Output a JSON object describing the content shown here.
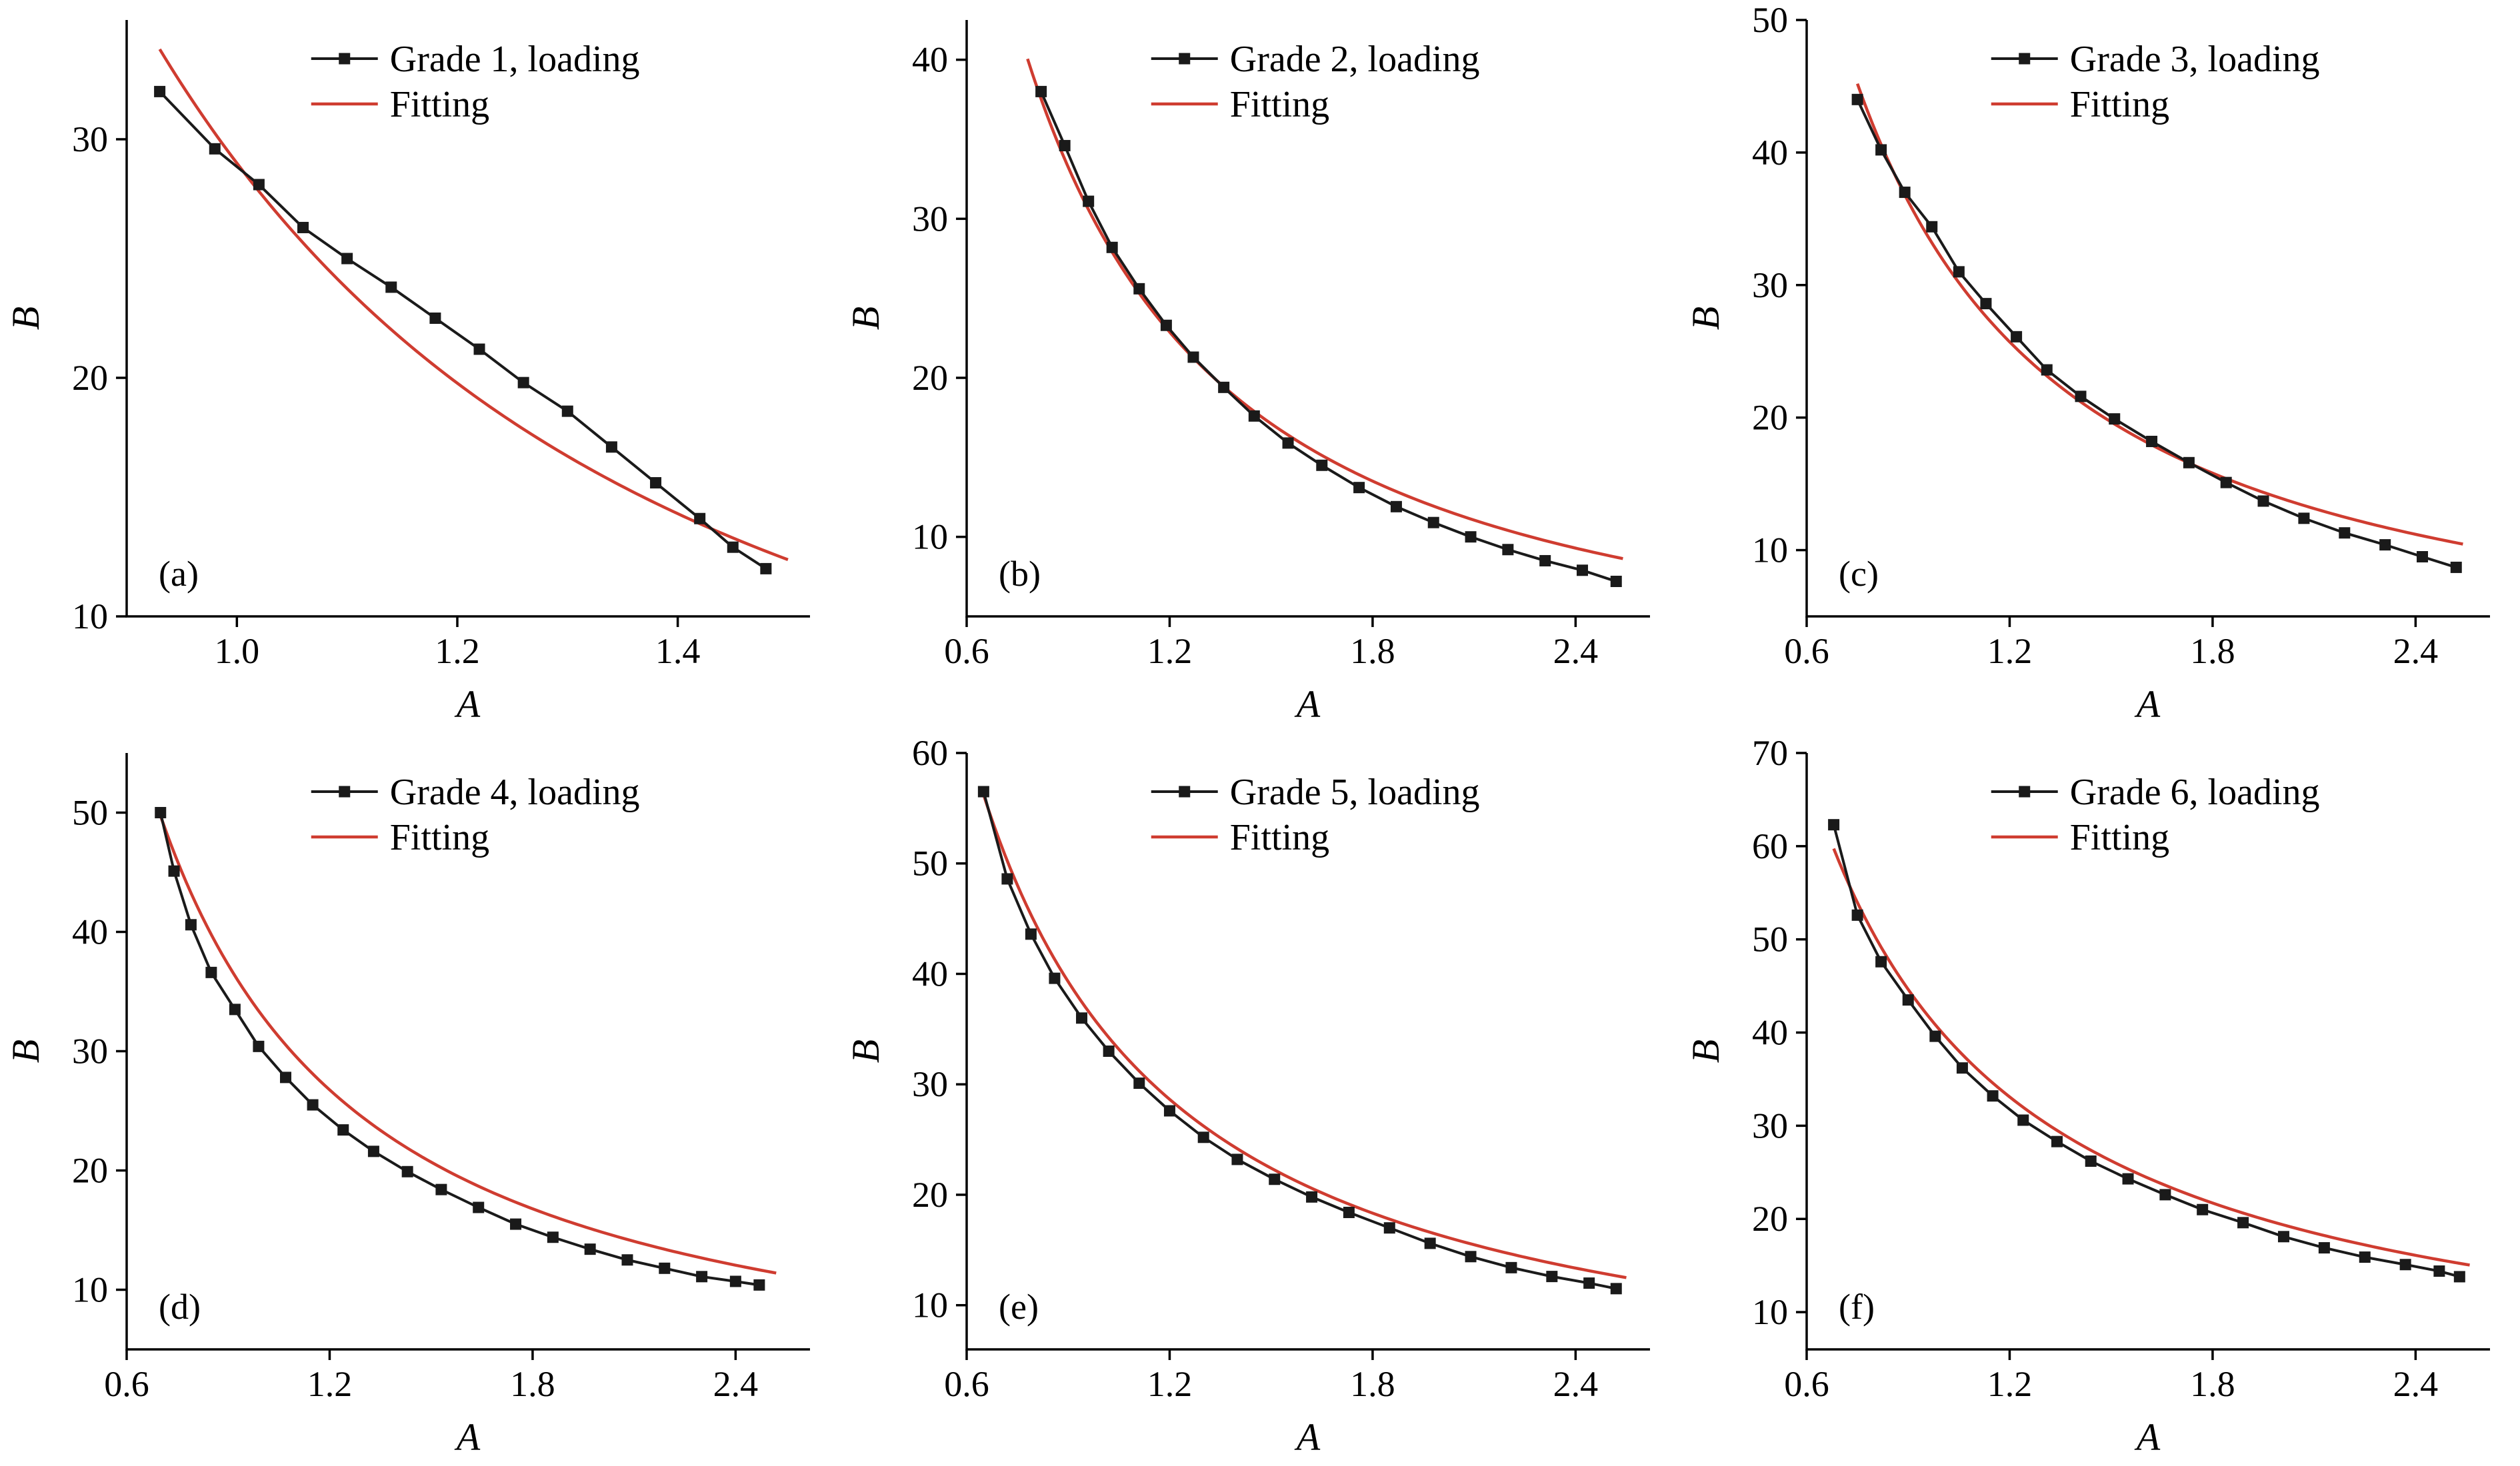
{
  "figure": {
    "background": "#ffffff"
  },
  "style": {
    "data_color": "#1a1a1a",
    "fit_color": "#cf3c30",
    "axis_color": "#000000"
  },
  "chart_data": [
    {
      "id": "a",
      "panel_label": "(a)",
      "type": "line",
      "title": "",
      "xlabel": "A",
      "ylabel": "B",
      "xlim": [
        0.9,
        1.52
      ],
      "ylim": [
        10,
        35
      ],
      "xticks": [
        1.0,
        1.2,
        1.4
      ],
      "xtick_labels": [
        "1.0",
        "1.2",
        "1.4"
      ],
      "yticks": [
        10,
        20,
        30
      ],
      "ytick_labels": [
        "10",
        "20",
        "30"
      ],
      "legend": [
        {
          "label": "Grade 1, loading",
          "style": "line+marker",
          "color": "#1a1a1a"
        },
        {
          "label": "Fitting",
          "style": "line",
          "color": "#cf3c30"
        }
      ],
      "series": [
        {
          "name": "Grade 1, loading",
          "x": [
            0.93,
            0.98,
            1.02,
            1.06,
            1.1,
            1.14,
            1.18,
            1.22,
            1.26,
            1.3,
            1.34,
            1.38,
            1.42,
            1.45,
            1.48
          ],
          "y": [
            32.0,
            29.6,
            28.1,
            26.3,
            25.0,
            23.8,
            22.5,
            21.2,
            19.8,
            18.6,
            17.1,
            15.6,
            14.1,
            12.9,
            12.0
          ]
        }
      ],
      "fit": {
        "name": "Fitting",
        "model": "power",
        "a": 29,
        "b": -2.1,
        "x_range": [
          0.93,
          1.5
        ]
      }
    },
    {
      "id": "b",
      "panel_label": "(b)",
      "type": "line",
      "title": "",
      "xlabel": "A",
      "ylabel": "B",
      "xlim": [
        0.6,
        2.62
      ],
      "ylim": [
        5,
        42.5
      ],
      "xticks": [
        0.6,
        1.2,
        1.8,
        2.4
      ],
      "xtick_labels": [
        "0.6",
        "1.2",
        "1.8",
        "2.4"
      ],
      "yticks": [
        10,
        20,
        30,
        40
      ],
      "ytick_labels": [
        "10",
        "20",
        "30",
        "40"
      ],
      "legend": [
        {
          "label": "Grade 2, loading",
          "style": "line+marker",
          "color": "#1a1a1a"
        },
        {
          "label": "Fitting",
          "style": "line",
          "color": "#cf3c30"
        }
      ],
      "series": [
        {
          "name": "Grade 2, loading",
          "x": [
            0.82,
            0.89,
            0.96,
            1.03,
            1.11,
            1.19,
            1.27,
            1.36,
            1.45,
            1.55,
            1.65,
            1.76,
            1.87,
            1.98,
            2.09,
            2.2,
            2.31,
            2.42,
            2.52
          ],
          "y": [
            38.0,
            34.6,
            31.1,
            28.2,
            25.6,
            23.3,
            21.3,
            19.4,
            17.6,
            15.9,
            14.5,
            13.1,
            11.9,
            10.9,
            10.0,
            9.2,
            8.5,
            7.9,
            7.2
          ]
        }
      ],
      "fit": {
        "name": "Fitting",
        "model": "power",
        "a": 29,
        "b": -1.3,
        "x_range": [
          0.78,
          2.54
        ]
      }
    },
    {
      "id": "c",
      "panel_label": "(c)",
      "type": "line",
      "title": "",
      "xlabel": "A",
      "ylabel": "B",
      "xlim": [
        0.6,
        2.62
      ],
      "ylim": [
        5,
        50
      ],
      "xticks": [
        0.6,
        1.2,
        1.8,
        2.4
      ],
      "xtick_labels": [
        "0.6",
        "1.2",
        "1.8",
        "2.4"
      ],
      "yticks": [
        10,
        20,
        30,
        40,
        50
      ],
      "ytick_labels": [
        "10",
        "20",
        "30",
        "40",
        "50"
      ],
      "legend": [
        {
          "label": "Grade 3, loading",
          "style": "line+marker",
          "color": "#1a1a1a"
        },
        {
          "label": "Fitting",
          "style": "line",
          "color": "#cf3c30"
        }
      ],
      "series": [
        {
          "name": "Grade 3, loading",
          "x": [
            0.75,
            0.82,
            0.89,
            0.97,
            1.05,
            1.13,
            1.22,
            1.31,
            1.41,
            1.51,
            1.62,
            1.73,
            1.84,
            1.95,
            2.07,
            2.19,
            2.31,
            2.42,
            2.52
          ],
          "y": [
            44.0,
            40.2,
            37.0,
            34.4,
            31.0,
            28.6,
            26.1,
            23.6,
            21.6,
            19.9,
            18.2,
            16.6,
            15.1,
            13.7,
            12.4,
            11.3,
            10.4,
            9.5,
            8.7
          ]
        }
      ],
      "fit": {
        "name": "Fitting",
        "model": "power",
        "a": 32,
        "b": -1.2,
        "x_range": [
          0.75,
          2.54
        ]
      }
    },
    {
      "id": "d",
      "panel_label": "(d)",
      "type": "line",
      "title": "",
      "xlabel": "A",
      "ylabel": "B",
      "xlim": [
        0.6,
        2.62
      ],
      "ylim": [
        5,
        55
      ],
      "xticks": [
        0.6,
        1.2,
        1.8,
        2.4
      ],
      "xtick_labels": [
        "0.6",
        "1.2",
        "1.8",
        "2.4"
      ],
      "yticks": [
        10,
        20,
        30,
        40,
        50
      ],
      "ytick_labels": [
        "10",
        "20",
        "30",
        "40",
        "50"
      ],
      "legend": [
        {
          "label": "Grade 4, loading",
          "style": "line+marker",
          "color": "#1a1a1a"
        },
        {
          "label": "Fitting",
          "style": "line",
          "color": "#cf3c30"
        }
      ],
      "series": [
        {
          "name": "Grade 4, loading",
          "x": [
            0.7,
            0.74,
            0.79,
            0.85,
            0.92,
            0.99,
            1.07,
            1.15,
            1.24,
            1.33,
            1.43,
            1.53,
            1.64,
            1.75,
            1.86,
            1.97,
            2.08,
            2.19,
            2.3,
            2.4,
            2.47
          ],
          "y": [
            50.0,
            45.1,
            40.6,
            36.6,
            33.5,
            30.4,
            27.8,
            25.5,
            23.4,
            21.6,
            19.9,
            18.4,
            16.9,
            15.5,
            14.4,
            13.4,
            12.5,
            11.8,
            11.1,
            10.7,
            10.4
          ]
        }
      ],
      "fit": {
        "name": "Fitting",
        "model": "power",
        "a": 33,
        "b": -1.15,
        "x_range": [
          0.7,
          2.52
        ]
      }
    },
    {
      "id": "e",
      "panel_label": "(e)",
      "type": "line",
      "title": "",
      "xlabel": "A",
      "ylabel": "B",
      "xlim": [
        0.6,
        2.62
      ],
      "ylim": [
        6,
        60
      ],
      "xticks": [
        0.6,
        1.2,
        1.8,
        2.4
      ],
      "xtick_labels": [
        "0.6",
        "1.2",
        "1.8",
        "2.4"
      ],
      "yticks": [
        10,
        20,
        30,
        40,
        50,
        60
      ],
      "ytick_labels": [
        "10",
        "20",
        "30",
        "40",
        "50",
        "60"
      ],
      "legend": [
        {
          "label": "Grade 5, loading",
          "style": "line+marker",
          "color": "#1a1a1a"
        },
        {
          "label": "Fitting",
          "style": "line",
          "color": "#cf3c30"
        }
      ],
      "series": [
        {
          "name": "Grade 5, loading",
          "x": [
            0.65,
            0.72,
            0.79,
            0.86,
            0.94,
            1.02,
            1.11,
            1.2,
            1.3,
            1.4,
            1.51,
            1.62,
            1.73,
            1.85,
            1.97,
            2.09,
            2.21,
            2.33,
            2.44,
            2.52
          ],
          "y": [
            56.5,
            48.6,
            43.6,
            39.6,
            36.0,
            33.0,
            30.1,
            27.6,
            25.2,
            23.2,
            21.4,
            19.8,
            18.4,
            17.0,
            15.6,
            14.4,
            13.4,
            12.6,
            12.0,
            11.5
          ]
        }
      ],
      "fit": {
        "name": "Fitting",
        "model": "power",
        "a": 35,
        "b": -1.1,
        "x_range": [
          0.65,
          2.55
        ]
      }
    },
    {
      "id": "f",
      "panel_label": "(f)",
      "type": "line",
      "title": "",
      "xlabel": "A",
      "ylabel": "B",
      "xlim": [
        0.6,
        2.62
      ],
      "ylim": [
        6,
        70
      ],
      "xticks": [
        0.6,
        1.2,
        1.8,
        2.4
      ],
      "xtick_labels": [
        "0.6",
        "1.2",
        "1.8",
        "2.4"
      ],
      "yticks": [
        10,
        20,
        30,
        40,
        50,
        60,
        70
      ],
      "ytick_labels": [
        "10",
        "20",
        "30",
        "40",
        "50",
        "60",
        "70"
      ],
      "legend": [
        {
          "label": "Grade 6, loading",
          "style": "line+marker",
          "color": "#1a1a1a"
        },
        {
          "label": "Fitting",
          "style": "line",
          "color": "#cf3c30"
        }
      ],
      "series": [
        {
          "name": "Grade 6, loading",
          "x": [
            0.68,
            0.75,
            0.82,
            0.9,
            0.98,
            1.06,
            1.15,
            1.24,
            1.34,
            1.44,
            1.55,
            1.66,
            1.77,
            1.89,
            2.01,
            2.13,
            2.25,
            2.37,
            2.47,
            2.53
          ],
          "y": [
            62.3,
            52.6,
            47.6,
            43.5,
            39.6,
            36.2,
            33.2,
            30.6,
            28.3,
            26.2,
            24.3,
            22.6,
            21.0,
            19.6,
            18.1,
            16.9,
            15.9,
            15.1,
            14.4,
            13.8
          ]
        }
      ],
      "fit": {
        "name": "Fitting",
        "model": "power",
        "a": 40,
        "b": -1.04,
        "x_range": [
          0.68,
          2.56
        ]
      }
    }
  ]
}
